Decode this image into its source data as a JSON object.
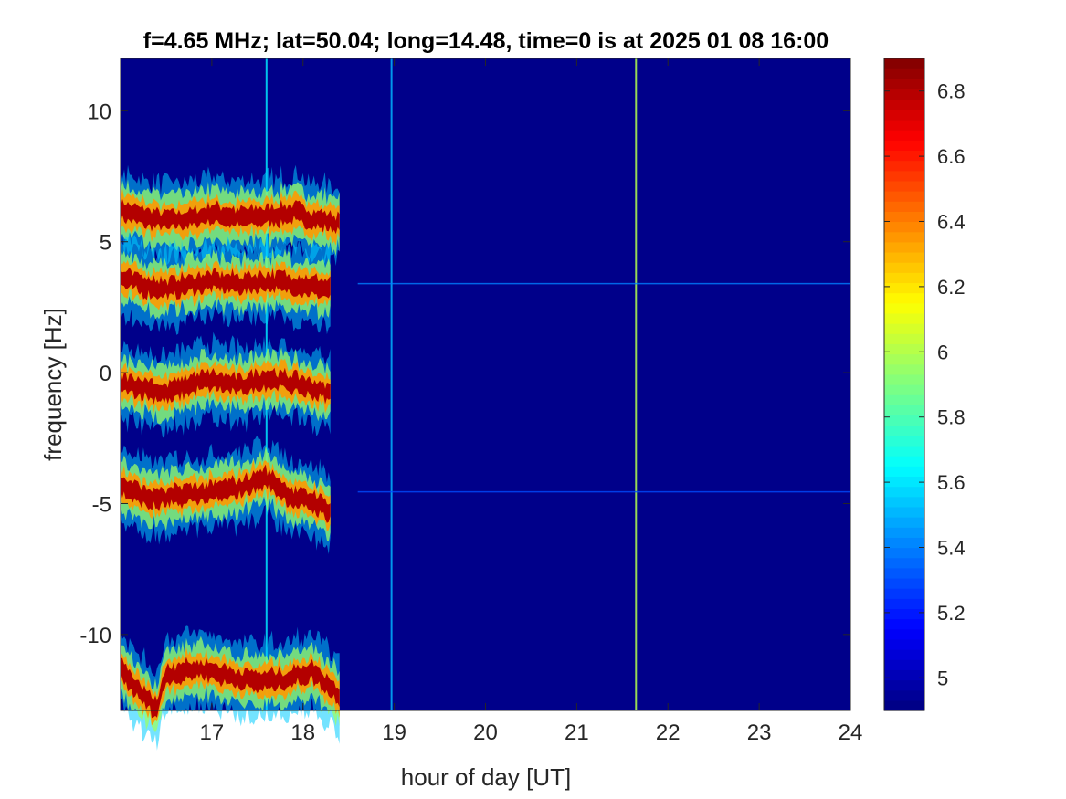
{
  "chart_data": {
    "type": "heatmap",
    "title": "f=4.65 MHz;  lat=50.04; long=14.48, time=0 is at 2025 01 08 16:00",
    "xlabel": "hour of day [UT]",
    "ylabel": "frequency [Hz]",
    "xlim": [
      16.0,
      24.0
    ],
    "ylim": [
      -12.9,
      12.0
    ],
    "x_ticks": [
      17,
      18,
      19,
      20,
      21,
      22,
      23,
      24
    ],
    "x_tick_labels": [
      "17",
      "18",
      "19",
      "20",
      "21",
      "22",
      "23",
      "24"
    ],
    "y_ticks": [
      10,
      5,
      0,
      -5,
      -10
    ],
    "y_tick_labels": [
      "10",
      "5",
      "0",
      "-5",
      "-10"
    ],
    "colorbar": {
      "colormap": "jet",
      "clim": [
        4.9,
        6.9
      ],
      "ticks": [
        6.8,
        6.6,
        6.4,
        6.2,
        6.0,
        5.8,
        5.6,
        5.4,
        5.2,
        5.0
      ],
      "tick_labels": [
        "6.8",
        "6.6",
        "6.4",
        "6.2",
        "6",
        "5.8",
        "5.6",
        "5.4",
        "5.2",
        "5"
      ]
    },
    "background_value": 4.92,
    "series": [
      {
        "x": [
          16.0,
          16.3,
          16.5,
          16.8,
          17.0,
          17.3,
          17.6,
          17.9,
          18.1,
          18.4
        ],
        "y": [
          6.2,
          5.9,
          5.8,
          5.9,
          6.1,
          5.9,
          6.0,
          6.1,
          5.9,
          5.7
        ]
      },
      {
        "x": [
          16.0,
          16.3,
          16.5,
          16.8,
          17.0,
          17.3,
          17.6,
          17.9,
          18.1,
          18.3
        ],
        "y": [
          3.6,
          3.3,
          3.2,
          3.4,
          3.5,
          3.4,
          3.5,
          3.4,
          3.3,
          3.2
        ]
      },
      {
        "x": [
          16.0,
          16.3,
          16.5,
          16.8,
          17.0,
          17.3,
          17.6,
          17.9,
          18.1,
          18.3
        ],
        "y": [
          -0.4,
          -0.6,
          -0.8,
          -0.4,
          -0.3,
          -0.5,
          -0.2,
          -0.4,
          -0.6,
          -0.8
        ]
      },
      {
        "x": [
          16.0,
          16.3,
          16.5,
          16.8,
          17.0,
          17.3,
          17.6,
          17.9,
          18.1,
          18.3
        ],
        "y": [
          -4.3,
          -4.8,
          -4.8,
          -4.6,
          -4.6,
          -4.4,
          -4.0,
          -4.8,
          -4.9,
          -5.3
        ]
      },
      {
        "x": [
          16.0,
          16.2,
          16.4,
          16.5,
          16.7,
          16.9,
          17.2,
          17.5,
          17.8,
          18.1,
          18.4
        ],
        "y": [
          -11.3,
          -12.2,
          -12.8,
          -11.5,
          -11.4,
          -11.3,
          -11.6,
          -11.8,
          -11.7,
          -11.4,
          -12.3
        ]
      }
    ],
    "vertical_lines": [
      {
        "x": 17.6,
        "value": 5.6
      },
      {
        "x": 18.97,
        "value": 5.5
      },
      {
        "x": 21.65,
        "value": 6.0
      }
    ],
    "horizontal_lines": [
      {
        "y": 3.4,
        "xlim": [
          18.6,
          24.0
        ],
        "value": 5.4
      },
      {
        "y": -4.55,
        "xlim": [
          18.6,
          24.0
        ],
        "value": 5.3
      }
    ]
  }
}
